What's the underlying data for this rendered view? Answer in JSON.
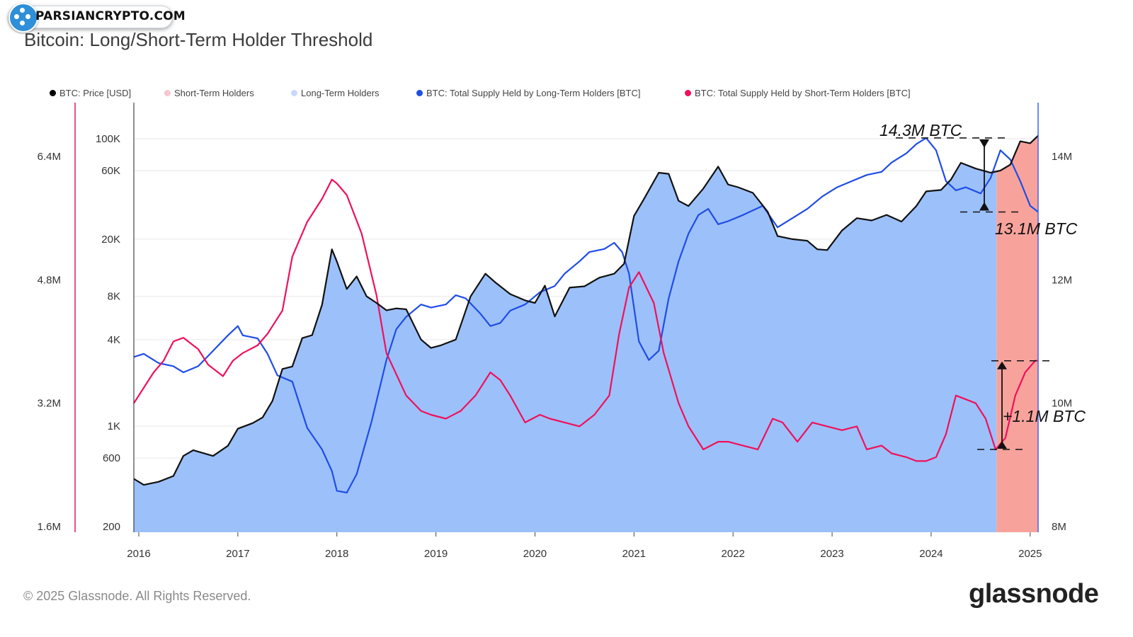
{
  "watermark": {
    "text": "PARSIANCRYPTO.COM"
  },
  "header": {
    "title": "Bitcoin: Long/Short-Term Holder Threshold"
  },
  "legend": [
    {
      "label": "BTC: Price [USD]",
      "color": "#000000"
    },
    {
      "label": "Short-Term Holders",
      "color": "#f9c6d3"
    },
    {
      "label": "Long-Term Holders",
      "color": "#c9d9fb"
    },
    {
      "label": "BTC: Total Supply Held by Long-Term Holders [BTC]",
      "color": "#1f4de6"
    },
    {
      "label": "BTC: Total Supply Held by Short-Term Holders [BTC]",
      "color": "#f0105b"
    }
  ],
  "annotations": {
    "lth_peak": "14.3M BTC",
    "lth_now": "13.1M BTC",
    "sth_change": "+1.1M BTC"
  },
  "footer": {
    "copyright": "© 2025 Glassnode. All Rights Reserved.",
    "brand": "glassnode"
  },
  "colors": {
    "price": "#111111",
    "lth_line": "#1f4de6",
    "sth_line": "#f0105b",
    "lth_area": "#9cc0fa",
    "sth_area": "#f7a39c",
    "left_axis_line": "#e5195e",
    "right_axis_line": "#3d66ee"
  },
  "chart_data": {
    "type": "line",
    "title": "Bitcoin: Long/Short-Term Holder Threshold",
    "x_axis": {
      "ticks": [
        "2016",
        "2017",
        "2018",
        "2019",
        "2020",
        "2021",
        "2022",
        "2023",
        "2024",
        "2025"
      ],
      "range": [
        2015.95,
        2025.08
      ]
    },
    "y_axis_left": {
      "scale": "linear",
      "ticks": [
        "1.6M",
        "3.2M",
        "4.8M",
        "6.4M"
      ],
      "range": [
        1.6,
        6.4
      ],
      "unit": "M BTC"
    },
    "y_axis_price": {
      "scale": "log",
      "ticks": [
        "200",
        "600",
        "1K",
        "4K",
        "8K",
        "20K",
        "60K",
        "100K"
      ],
      "range": [
        200,
        100000
      ],
      "unit": "USD"
    },
    "y_axis_right": {
      "scale": "linear",
      "ticks": [
        "8M",
        "10M",
        "12M",
        "14M"
      ],
      "range": [
        8,
        14
      ],
      "unit": "M BTC"
    },
    "regime_areas": [
      {
        "name": "Long-Term Holders",
        "from": 2015.95,
        "to": 2024.66
      },
      {
        "name": "Short-Term Holders",
        "from": 2024.66,
        "to": 2025.08
      }
    ],
    "series": [
      {
        "name": "BTC: Price [USD]",
        "axis": "price",
        "x": [
          2015.95,
          2016.05,
          2016.2,
          2016.35,
          2016.45,
          2016.55,
          2016.75,
          2016.9,
          2017.0,
          2017.15,
          2017.25,
          2017.35,
          2017.45,
          2017.55,
          2017.65,
          2017.75,
          2017.85,
          2017.95,
          2018.0,
          2018.1,
          2018.2,
          2018.3,
          2018.4,
          2018.5,
          2018.6,
          2018.7,
          2018.85,
          2018.95,
          2019.05,
          2019.2,
          2019.35,
          2019.5,
          2019.6,
          2019.75,
          2019.9,
          2020.0,
          2020.1,
          2020.2,
          2020.35,
          2020.5,
          2020.65,
          2020.8,
          2020.9,
          2021.0,
          2021.1,
          2021.25,
          2021.35,
          2021.45,
          2021.55,
          2021.7,
          2021.85,
          2021.95,
          2022.05,
          2022.2,
          2022.35,
          2022.45,
          2022.6,
          2022.75,
          2022.85,
          2022.95,
          2023.1,
          2023.25,
          2023.4,
          2023.55,
          2023.7,
          2023.85,
          2023.95,
          2024.1,
          2024.2,
          2024.3,
          2024.45,
          2024.6,
          2024.7,
          2024.8,
          2024.9,
          2025.0,
          2025.08
        ],
        "values": [
          430,
          390,
          410,
          450,
          620,
          680,
          620,
          730,
          960,
          1050,
          1150,
          1500,
          2500,
          2600,
          4100,
          4300,
          7000,
          17000,
          14000,
          9000,
          11000,
          8000,
          7200,
          6400,
          6600,
          6500,
          4000,
          3500,
          3650,
          4000,
          8000,
          11500,
          10000,
          8300,
          7500,
          7200,
          9500,
          5800,
          9200,
          9400,
          10800,
          11500,
          13500,
          29000,
          38000,
          58000,
          57000,
          37000,
          34000,
          45000,
          64000,
          48000,
          46000,
          42000,
          31000,
          21000,
          20000,
          19500,
          17000,
          16800,
          23000,
          28000,
          27000,
          29500,
          26500,
          34000,
          43000,
          44000,
          52000,
          68000,
          62000,
          58000,
          60000,
          66000,
          96000,
          93000,
          105000
        ]
      },
      {
        "name": "BTC: Total Supply Held by Long-Term Holders [BTC]",
        "axis": "right",
        "x": [
          2015.95,
          2016.05,
          2016.2,
          2016.35,
          2016.45,
          2016.6,
          2016.75,
          2016.9,
          2017.0,
          2017.05,
          2017.2,
          2017.3,
          2017.4,
          2017.55,
          2017.7,
          2017.85,
          2017.95,
          2018.0,
          2018.1,
          2018.2,
          2018.35,
          2018.5,
          2018.6,
          2018.7,
          2018.85,
          2018.95,
          2019.1,
          2019.2,
          2019.3,
          2019.45,
          2019.55,
          2019.65,
          2019.75,
          2019.9,
          2020.05,
          2020.2,
          2020.3,
          2020.45,
          2020.55,
          2020.7,
          2020.8,
          2020.88,
          2020.95,
          2021.05,
          2021.15,
          2021.25,
          2021.35,
          2021.45,
          2021.55,
          2021.65,
          2021.75,
          2021.85,
          2021.95,
          2022.1,
          2022.3,
          2022.45,
          2022.6,
          2022.75,
          2022.9,
          2023.05,
          2023.2,
          2023.35,
          2023.5,
          2023.6,
          2023.75,
          2023.85,
          2023.95,
          2024.05,
          2024.15,
          2024.25,
          2024.35,
          2024.5,
          2024.6,
          2024.7,
          2024.8,
          2024.9,
          2025.0,
          2025.08
        ],
        "values": [
          10.75,
          10.8,
          10.65,
          10.6,
          10.5,
          10.6,
          10.85,
          11.1,
          11.25,
          11.1,
          11.05,
          10.8,
          10.45,
          10.35,
          9.6,
          9.25,
          8.9,
          8.58,
          8.55,
          8.85,
          9.7,
          10.7,
          11.2,
          11.4,
          11.6,
          11.55,
          11.6,
          11.75,
          11.7,
          11.45,
          11.25,
          11.3,
          11.5,
          11.6,
          11.8,
          11.9,
          12.1,
          12.3,
          12.45,
          12.5,
          12.6,
          12.45,
          12.1,
          11.0,
          10.7,
          10.85,
          11.7,
          12.3,
          12.75,
          13.05,
          13.15,
          12.9,
          12.95,
          13.05,
          13.2,
          12.85,
          13.0,
          13.15,
          13.35,
          13.5,
          13.6,
          13.7,
          13.75,
          13.9,
          14.05,
          14.2,
          14.3,
          14.1,
          13.6,
          13.45,
          13.5,
          13.4,
          13.65,
          14.1,
          13.95,
          13.6,
          13.2,
          13.1
        ]
      },
      {
        "name": "BTC: Total Supply Held by Short-Term Holders [BTC]",
        "axis": "left",
        "x": [
          2015.95,
          2016.05,
          2016.15,
          2016.25,
          2016.35,
          2016.45,
          2016.6,
          2016.7,
          2016.85,
          2016.95,
          2017.05,
          2017.2,
          2017.3,
          2017.45,
          2017.55,
          2017.7,
          2017.85,
          2017.95,
          2018.0,
          2018.1,
          2018.25,
          2018.4,
          2018.5,
          2018.7,
          2018.85,
          2018.95,
          2019.1,
          2019.25,
          2019.4,
          2019.55,
          2019.65,
          2019.75,
          2019.9,
          2020.05,
          2020.15,
          2020.3,
          2020.45,
          2020.6,
          2020.75,
          2020.85,
          2020.95,
          2021.05,
          2021.2,
          2021.3,
          2021.45,
          2021.55,
          2021.7,
          2021.85,
          2021.95,
          2022.1,
          2022.25,
          2022.4,
          2022.5,
          2022.65,
          2022.8,
          2022.95,
          2023.1,
          2023.25,
          2023.35,
          2023.5,
          2023.6,
          2023.75,
          2023.85,
          2023.95,
          2024.05,
          2024.15,
          2024.25,
          2024.35,
          2024.45,
          2024.55,
          2024.65,
          2024.75,
          2024.85,
          2024.95,
          2025.05,
          2025.08
        ],
        "values": [
          3.2,
          3.4,
          3.6,
          3.75,
          4.0,
          4.05,
          3.9,
          3.7,
          3.55,
          3.75,
          3.85,
          3.95,
          4.1,
          4.4,
          5.1,
          5.55,
          5.85,
          6.1,
          6.05,
          5.9,
          5.4,
          4.6,
          3.85,
          3.3,
          3.1,
          3.05,
          3.0,
          3.1,
          3.3,
          3.6,
          3.5,
          3.3,
          2.95,
          3.05,
          3.0,
          2.95,
          2.9,
          3.05,
          3.3,
          4.1,
          4.7,
          4.9,
          4.5,
          3.85,
          3.2,
          2.9,
          2.6,
          2.7,
          2.7,
          2.65,
          2.6,
          3.0,
          2.95,
          2.7,
          2.95,
          2.9,
          2.85,
          2.9,
          2.6,
          2.65,
          2.55,
          2.5,
          2.45,
          2.45,
          2.5,
          2.8,
          3.3,
          3.25,
          3.2,
          3.0,
          2.6,
          2.75,
          3.3,
          3.6,
          3.75,
          3.75
        ]
      }
    ]
  }
}
